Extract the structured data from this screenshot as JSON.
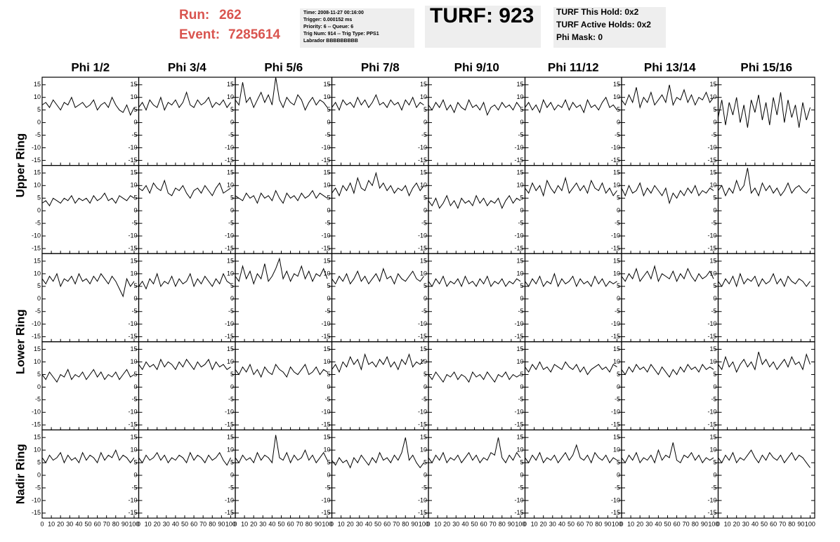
{
  "header": {
    "run_label": "Run:",
    "run": "262",
    "event_label": "Event:",
    "event": "7285614",
    "info": [
      "Time: 2008-11-27 00:16:00",
      "Trigger: 0.000152 ms",
      "Priority: 6 -- Queue: 6",
      "Trig Num: 914 -- Trig Type: PPS1",
      "Labrador BBBBBBBBB"
    ],
    "turf": "TURF: 923",
    "turf_info": [
      "TURF This Hold: 0x2",
      "TURF Active Holds: 0x2",
      "Phi Mask: 0"
    ]
  },
  "chart_data": {
    "type": "line",
    "color": "#000000",
    "columns": [
      "Phi 1/2",
      "Phi 3/4",
      "Phi 5/6",
      "Phi 7/8",
      "Phi 9/10",
      "Phi 11/12",
      "Phi 13/14",
      "Phi 15/16"
    ],
    "row_labels": [
      "Upper Ring",
      "Lower Ring",
      "Nadir Ring"
    ],
    "x": [
      0,
      4,
      8,
      12,
      16,
      20,
      24,
      28,
      32,
      36,
      40,
      44,
      48,
      52,
      56,
      60,
      64,
      68,
      72,
      76,
      80,
      84,
      88,
      92,
      96,
      100
    ],
    "xlim": [
      0,
      105
    ],
    "xticks": [
      0,
      10,
      20,
      30,
      40,
      50,
      60,
      70,
      80,
      90,
      100
    ],
    "ylim": [
      -17,
      18
    ],
    "yticks": [
      15,
      10,
      5,
      0,
      -5,
      -10,
      -15
    ],
    "series": [
      {
        "values": [
          7,
          8,
          6,
          9,
          7,
          5,
          8,
          7,
          10,
          6,
          7,
          8,
          6,
          7,
          9,
          5,
          7,
          8,
          6,
          10,
          7,
          5,
          4,
          7,
          3,
          6
        ]
      },
      {
        "values": [
          6,
          8,
          5,
          9,
          7,
          6,
          10,
          5,
          8,
          7,
          9,
          6,
          8,
          12,
          7,
          6,
          9,
          7,
          8,
          10,
          6,
          8,
          7,
          9,
          6,
          8
        ]
      },
      {
        "values": [
          9,
          7,
          16,
          8,
          10,
          6,
          9,
          12,
          8,
          11,
          7,
          18,
          9,
          6,
          10,
          8,
          7,
          11,
          9,
          5,
          8,
          10,
          7,
          9,
          8,
          6
        ]
      },
      {
        "values": [
          6,
          8,
          5,
          9,
          7,
          8,
          6,
          10,
          7,
          9,
          6,
          8,
          11,
          7,
          8,
          6,
          9,
          7,
          8,
          5,
          9,
          7,
          10,
          6,
          8,
          7
        ]
      },
      {
        "values": [
          7,
          5,
          8,
          6,
          9,
          5,
          7,
          4,
          8,
          6,
          5,
          9,
          6,
          7,
          5,
          8,
          3,
          6,
          7,
          5,
          8,
          6,
          7,
          5,
          8,
          6
        ]
      },
      {
        "values": [
          6,
          8,
          5,
          7,
          4,
          9,
          6,
          8,
          5,
          7,
          6,
          9,
          5,
          8,
          6,
          7,
          4,
          9,
          6,
          7,
          5,
          8,
          10,
          6,
          7,
          5
        ]
      },
      {
        "values": [
          9,
          7,
          11,
          8,
          14,
          6,
          10,
          8,
          12,
          7,
          9,
          11,
          8,
          15,
          7,
          10,
          9,
          13,
          8,
          11,
          7,
          10,
          9,
          12,
          8,
          10
        ]
      },
      {
        "values": [
          2,
          9,
          -1,
          8,
          3,
          10,
          0,
          7,
          -2,
          9,
          4,
          11,
          1,
          8,
          -1,
          10,
          3,
          12,
          0,
          9,
          2,
          7,
          -2,
          8,
          1,
          6
        ]
      },
      {
        "values": [
          3,
          4,
          2,
          5,
          4,
          3,
          5,
          4,
          6,
          3,
          5,
          4,
          5,
          3,
          6,
          4,
          5,
          7,
          4,
          5,
          3,
          6,
          5,
          4,
          6,
          5
        ]
      },
      {
        "values": [
          9,
          8,
          10,
          7,
          11,
          9,
          8,
          12,
          7,
          6,
          9,
          8,
          10,
          7,
          5,
          8,
          9,
          7,
          10,
          8,
          6,
          9,
          11,
          7,
          8,
          9
        ]
      },
      {
        "values": [
          6,
          5,
          4,
          7,
          5,
          6,
          3,
          7,
          5,
          6,
          4,
          8,
          5,
          3,
          7,
          5,
          6,
          4,
          7,
          5,
          6,
          8,
          5,
          7,
          6,
          5
        ]
      },
      {
        "values": [
          7,
          9,
          6,
          10,
          8,
          11,
          7,
          13,
          9,
          8,
          12,
          10,
          15,
          9,
          11,
          8,
          10,
          7,
          9,
          8,
          10,
          6,
          9,
          11,
          8,
          10
        ]
      },
      {
        "values": [
          4,
          2,
          5,
          1,
          3,
          6,
          2,
          4,
          1,
          5,
          3,
          4,
          2,
          6,
          3,
          5,
          2,
          4,
          3,
          5,
          1,
          4,
          6,
          3,
          5,
          4
        ]
      },
      {
        "values": [
          9,
          7,
          11,
          8,
          10,
          6,
          12,
          9,
          7,
          10,
          8,
          13,
          7,
          9,
          11,
          8,
          10,
          7,
          12,
          9,
          8,
          11,
          7,
          9,
          6,
          8
        ]
      },
      {
        "values": [
          9,
          6,
          10,
          7,
          8,
          11,
          6,
          9,
          7,
          10,
          8,
          6,
          9,
          3,
          7,
          5,
          8,
          6,
          9,
          7,
          10,
          6,
          8,
          7,
          9,
          8
        ]
      },
      {
        "values": [
          8,
          10,
          6,
          9,
          7,
          12,
          8,
          10,
          17,
          7,
          9,
          6,
          11,
          8,
          10,
          7,
          9,
          6,
          8,
          11,
          7,
          9,
          10,
          8,
          7,
          9
        ]
      },
      {
        "values": [
          8,
          6,
          9,
          7,
          10,
          5,
          8,
          7,
          9,
          6,
          10,
          7,
          8,
          6,
          9,
          7,
          10,
          8,
          6,
          9,
          7,
          4,
          1,
          8,
          5,
          7
        ]
      },
      {
        "values": [
          5,
          7,
          4,
          8,
          6,
          10,
          5,
          7,
          6,
          9,
          5,
          8,
          6,
          7,
          10,
          5,
          8,
          6,
          9,
          7,
          5,
          8,
          6,
          10,
          7,
          6
        ]
      },
      {
        "values": [
          9,
          7,
          13,
          8,
          11,
          6,
          10,
          8,
          14,
          7,
          9,
          12,
          16,
          8,
          11,
          7,
          10,
          9,
          13,
          8,
          11,
          7,
          10,
          9,
          12,
          8
        ]
      },
      {
        "values": [
          8,
          6,
          9,
          7,
          10,
          6,
          8,
          11,
          7,
          9,
          6,
          8,
          10,
          7,
          12,
          8,
          9,
          6,
          10,
          8,
          7,
          9,
          11,
          8,
          7,
          9
        ]
      },
      {
        "values": [
          7,
          5,
          8,
          6,
          9,
          5,
          7,
          6,
          8,
          5,
          9,
          6,
          7,
          5,
          8,
          6,
          9,
          5,
          7,
          6,
          8,
          5,
          7,
          6,
          8,
          7
        ]
      },
      {
        "values": [
          7,
          5,
          8,
          6,
          9,
          5,
          7,
          6,
          10,
          5,
          8,
          6,
          7,
          9,
          5,
          8,
          6,
          7,
          5,
          9,
          6,
          8,
          5,
          7,
          6,
          7
        ]
      },
      {
        "values": [
          9,
          7,
          10,
          8,
          12,
          7,
          9,
          11,
          8,
          13,
          7,
          10,
          9,
          8,
          11,
          7,
          10,
          8,
          12,
          9,
          7,
          10,
          8,
          9,
          11,
          8
        ]
      },
      {
        "values": [
          7,
          5,
          8,
          6,
          9,
          5,
          10,
          6,
          8,
          7,
          9,
          5,
          8,
          6,
          7,
          10,
          6,
          8,
          5,
          9,
          7,
          6,
          8,
          7,
          5,
          7
        ]
      },
      {
        "values": [
          5,
          3,
          6,
          4,
          2,
          5,
          4,
          7,
          3,
          5,
          4,
          6,
          3,
          5,
          7,
          4,
          6,
          3,
          5,
          4,
          6,
          3,
          5,
          7,
          4,
          5
        ]
      },
      {
        "values": [
          9,
          7,
          10,
          8,
          9,
          7,
          11,
          8,
          10,
          9,
          7,
          10,
          8,
          11,
          9,
          7,
          10,
          8,
          9,
          11,
          7,
          10,
          8,
          9,
          7,
          8
        ]
      },
      {
        "values": [
          7,
          5,
          8,
          6,
          9,
          5,
          7,
          4,
          8,
          6,
          5,
          9,
          7,
          6,
          4,
          8,
          6,
          5,
          7,
          9,
          5,
          6,
          8,
          5,
          7,
          6
        ]
      },
      {
        "values": [
          7,
          9,
          6,
          10,
          8,
          12,
          9,
          11,
          7,
          13,
          9,
          10,
          8,
          11,
          9,
          12,
          8,
          10,
          7,
          11,
          9,
          13,
          8,
          10,
          9,
          11
        ]
      },
      {
        "values": [
          5,
          3,
          6,
          4,
          2,
          5,
          4,
          6,
          3,
          5,
          4,
          2,
          6,
          4,
          5,
          3,
          6,
          4,
          2,
          5,
          4,
          6,
          3,
          5,
          4,
          5
        ]
      },
      {
        "values": [
          8,
          6,
          9,
          7,
          10,
          7,
          8,
          6,
          9,
          8,
          7,
          10,
          8,
          7,
          9,
          6,
          8,
          5,
          7,
          8,
          9,
          7,
          8,
          6,
          9,
          8
        ]
      },
      {
        "values": [
          7,
          5,
          8,
          6,
          9,
          7,
          8,
          6,
          9,
          7,
          5,
          8,
          6,
          4,
          7,
          5,
          8,
          6,
          9,
          7,
          8,
          6,
          9,
          7,
          8,
          7
        ]
      },
      {
        "values": [
          9,
          7,
          12,
          8,
          10,
          6,
          9,
          11,
          8,
          10,
          7,
          14,
          9,
          11,
          8,
          10,
          7,
          9,
          11,
          8,
          12,
          9,
          10,
          7,
          13,
          9
        ]
      },
      {
        "values": [
          7,
          5,
          8,
          6,
          7,
          9,
          5,
          8,
          6,
          7,
          5,
          9,
          6,
          8,
          7,
          5,
          9,
          6,
          8,
          7,
          10,
          6,
          8,
          7,
          5,
          7
        ]
      },
      {
        "values": [
          7,
          5,
          8,
          6,
          7,
          9,
          6,
          8,
          5,
          7,
          6,
          8,
          7,
          5,
          9,
          6,
          8,
          7,
          5,
          8,
          6,
          7,
          9,
          6,
          4,
          7
        ]
      },
      {
        "values": [
          7,
          5,
          8,
          6,
          7,
          5,
          9,
          6,
          8,
          7,
          5,
          16,
          7,
          6,
          9,
          5,
          8,
          6,
          7,
          10,
          6,
          8,
          5,
          7,
          9,
          6
        ]
      },
      {
        "values": [
          6,
          4,
          7,
          5,
          6,
          3,
          7,
          5,
          8,
          6,
          4,
          7,
          5,
          9,
          6,
          7,
          5,
          8,
          6,
          9,
          15,
          6,
          8,
          5,
          3,
          5
        ]
      },
      {
        "values": [
          7,
          5,
          8,
          6,
          9,
          5,
          7,
          6,
          8,
          5,
          7,
          9,
          6,
          8,
          5,
          7,
          6,
          9,
          8,
          15,
          7,
          5,
          8,
          6,
          9,
          7
        ]
      },
      {
        "values": [
          7,
          5,
          8,
          6,
          9,
          5,
          7,
          6,
          8,
          5,
          7,
          9,
          6,
          8,
          12,
          7,
          6,
          8,
          5,
          9,
          7,
          6,
          8,
          5,
          7,
          6
        ]
      },
      {
        "values": [
          7,
          5,
          8,
          6,
          9,
          5,
          7,
          6,
          8,
          5,
          10,
          6,
          8,
          7,
          13,
          6,
          5,
          8,
          7,
          9,
          6,
          8,
          5,
          7,
          6,
          7
        ]
      },
      {
        "values": [
          7,
          5,
          8,
          6,
          9,
          5,
          7,
          6,
          8,
          10,
          7,
          5,
          8,
          6,
          9,
          7,
          6,
          8,
          5,
          7,
          9,
          6,
          8,
          7,
          5,
          3
        ]
      }
    ]
  }
}
